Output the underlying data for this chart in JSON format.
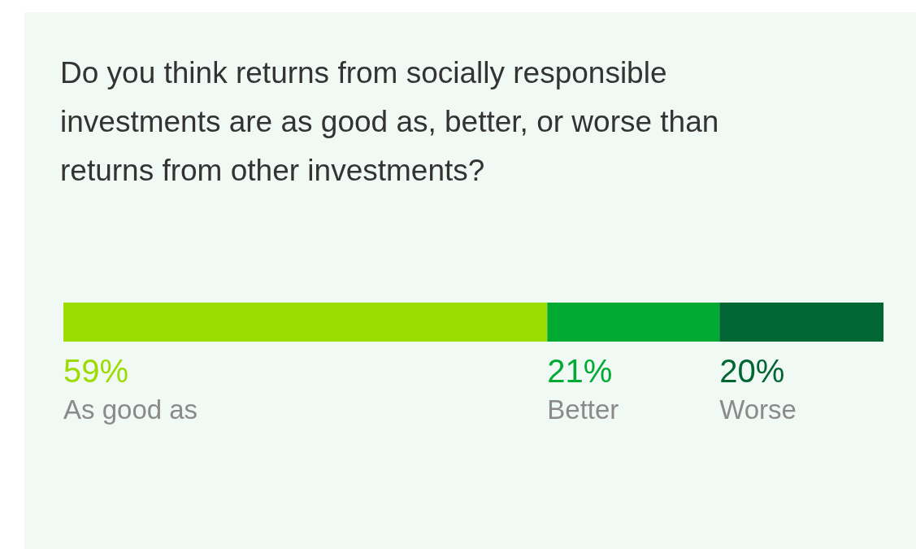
{
  "chart_data": {
    "type": "bar",
    "title": "Do you think returns from socially responsible investments are as good as, better, or worse than returns from other investments?",
    "orientation": "horizontal",
    "stacked": true,
    "categories": [
      null
    ],
    "xlim": [
      0,
      100
    ],
    "tick_labels": false,
    "series": [
      {
        "name": "As good as",
        "color": "#9ddc00",
        "values": [
          59
        ],
        "value_labels": [
          "59%"
        ]
      },
      {
        "name": "Better",
        "color": "#00aa33",
        "values": [
          21
        ],
        "value_labels": [
          "21%"
        ]
      },
      {
        "name": "Worse",
        "color": "#006633",
        "values": [
          20
        ],
        "value_labels": [
          "20%"
        ]
      }
    ]
  }
}
